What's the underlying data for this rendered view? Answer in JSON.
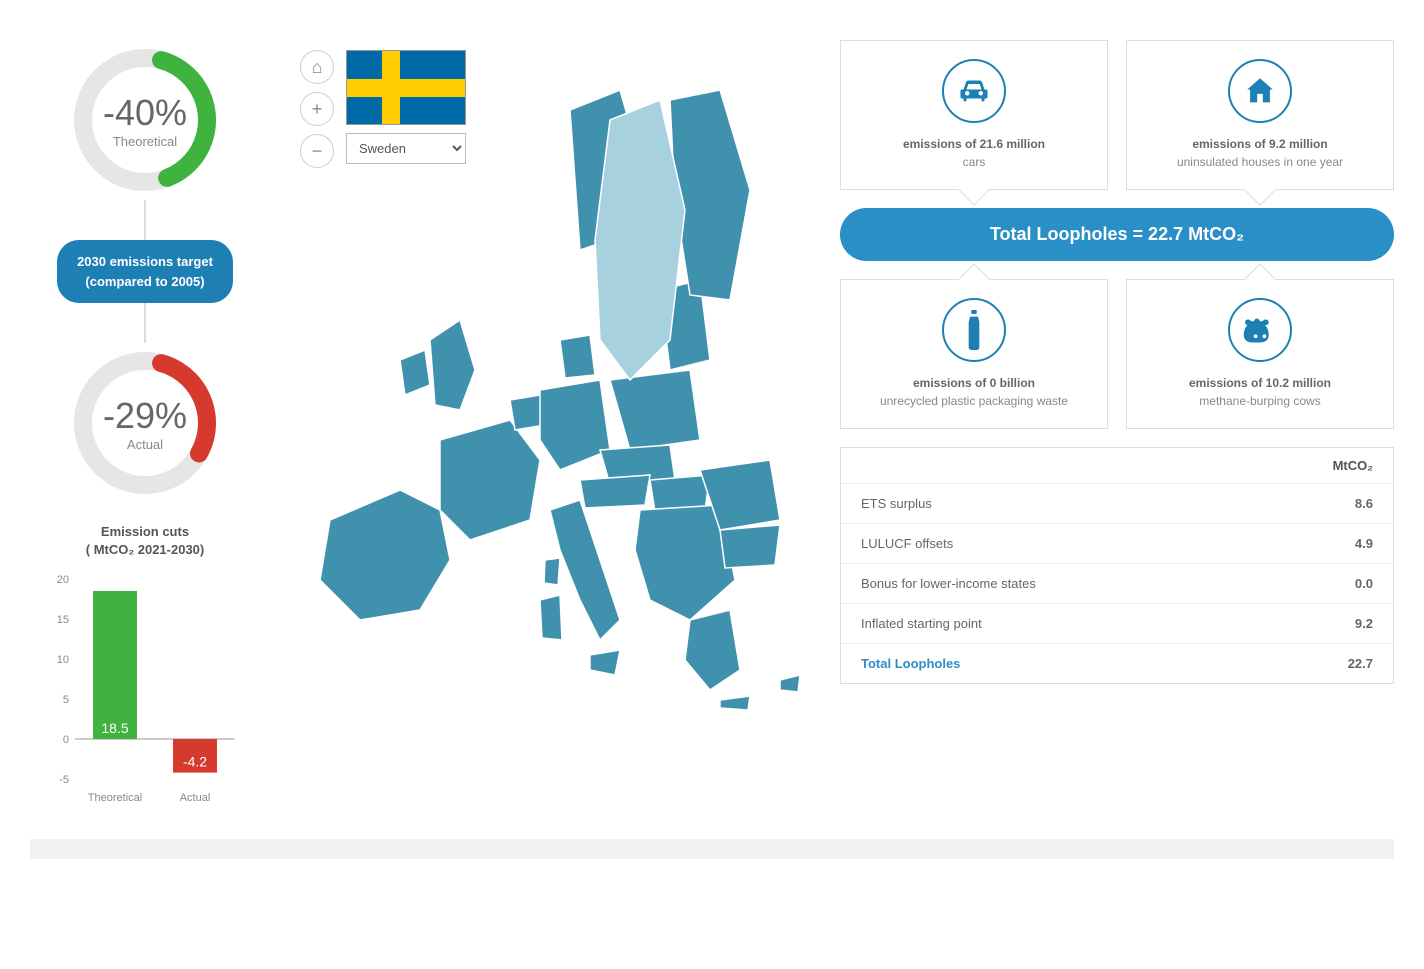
{
  "colors": {
    "accent": "#2b8fc7",
    "green": "#3fb23f",
    "red": "#d63a2f",
    "grey_ring": "#e6e6e6",
    "map_fill": "#3f91ad",
    "map_highlight": "#a8d1e0",
    "map_stroke": "#ffffff",
    "text_mid": "#666666",
    "text_light": "#888888"
  },
  "donuts": {
    "theoretical": {
      "value": "-40%",
      "label": "Theoretical",
      "pct": 40,
      "color": "#3fb23f"
    },
    "actual": {
      "value": "-29%",
      "label": "Actual",
      "pct": 29,
      "color": "#d63a2f"
    }
  },
  "target_pill": {
    "line1": "2030 emissions target",
    "line2": "(compared to 2005)"
  },
  "bar_chart": {
    "title_line1": "Emission cuts",
    "title_line2": "( MtCO₂ 2021-2030)",
    "ymin": -5,
    "ymax": 20,
    "ystep": 5,
    "bars": [
      {
        "label": "Theoretical",
        "value": 18.5,
        "color": "#3fb23f",
        "text_color": "#ffffff"
      },
      {
        "label": "Actual",
        "value": -4.2,
        "color": "#d63a2f",
        "text_color": "#ffffff"
      }
    ],
    "axis_color": "#999999",
    "tick_fontsize": 11,
    "label_fontsize": 11
  },
  "map": {
    "selected_country": "Sweden",
    "home_icon": "⌂",
    "plus_icon": "+",
    "minus_icon": "−"
  },
  "cards": {
    "cars": {
      "line1": "emissions of 21.6 million",
      "line2": "cars"
    },
    "houses": {
      "line1": "emissions of 9.2 million",
      "line2": "uninsulated houses in one year"
    },
    "bottle": {
      "line1": "emissions of 0 billion",
      "line2": "unrecycled plastic packaging waste"
    },
    "cow": {
      "line1": "emissions of 10.2 million",
      "line2": "methane-burping cows"
    }
  },
  "total_bar": "Total Loopholes = 22.7 MtCO₂",
  "table": {
    "header": "MtCO₂",
    "rows": [
      {
        "name": "ETS surplus",
        "value": "8.6"
      },
      {
        "name": "LULUCF offsets",
        "value": "4.9"
      },
      {
        "name": "Bonus for lower-income states",
        "value": "0.0"
      },
      {
        "name": "Inflated starting point",
        "value": "9.2"
      }
    ],
    "total": {
      "name": "Total Loopholes",
      "value": "22.7"
    }
  }
}
